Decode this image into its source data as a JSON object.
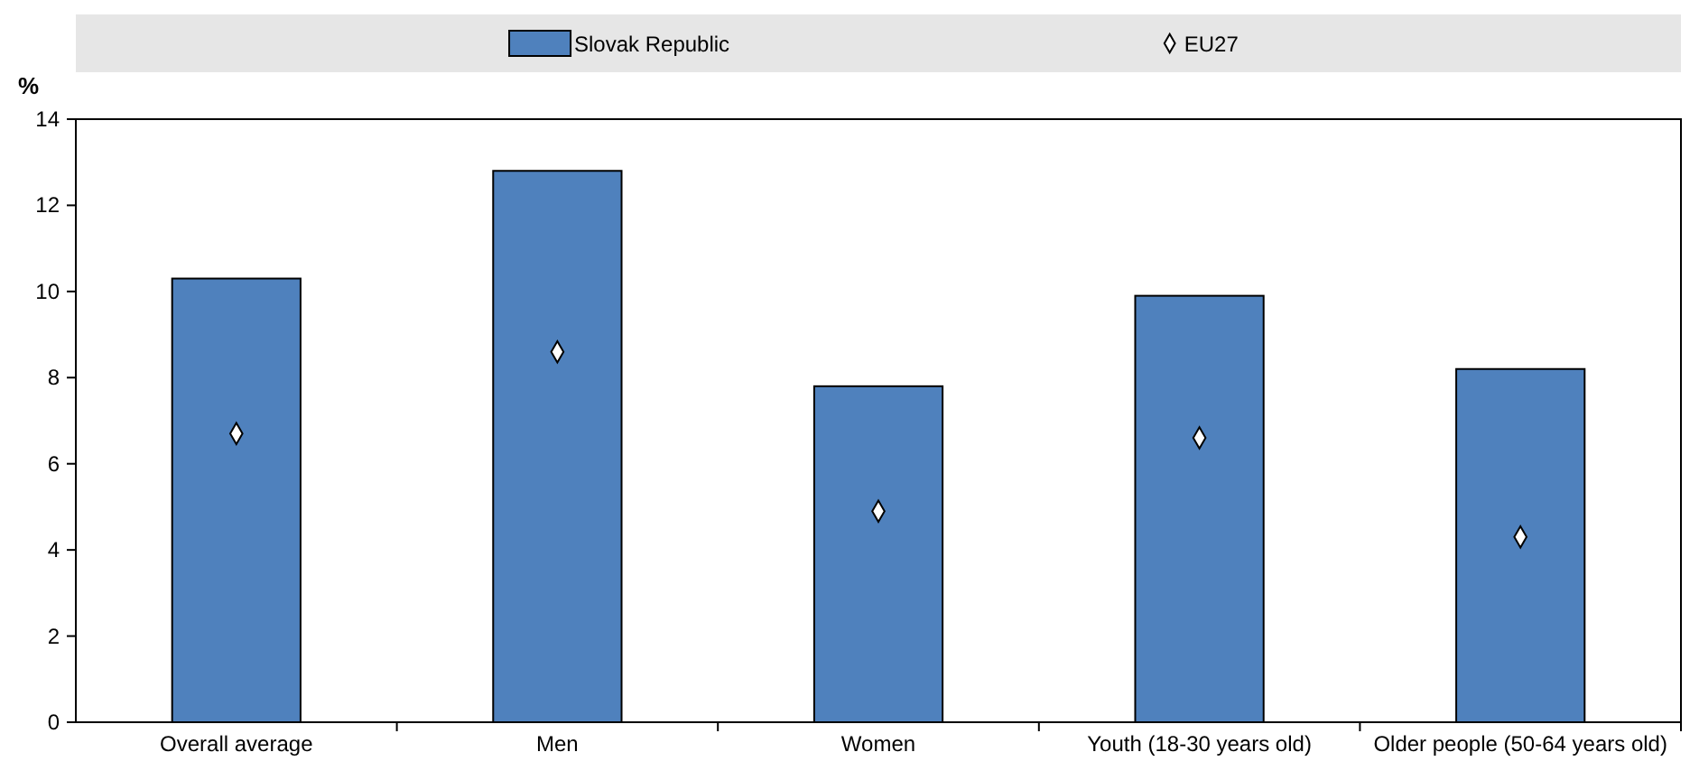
{
  "chart_data": {
    "type": "bar",
    "ylabel": "%",
    "categories": [
      "Overall average",
      "Men",
      "Women",
      "Youth (18-30 years old)",
      "Older people (50-64 years old)"
    ],
    "series": [
      {
        "name": "Slovak Republic",
        "color": "#4f81bd",
        "values": [
          10.3,
          12.8,
          7.8,
          9.9,
          8.2
        ]
      },
      {
        "name": "EU27",
        "type": "scatter",
        "color": "#ffffff",
        "marker": "diamond",
        "values": [
          6.7,
          8.6,
          4.9,
          6.6,
          4.3
        ]
      }
    ],
    "ylim": [
      0,
      14
    ],
    "yticks": [
      0,
      2,
      4,
      6,
      8,
      10,
      12,
      14
    ],
    "grid": false,
    "legend": "top"
  }
}
